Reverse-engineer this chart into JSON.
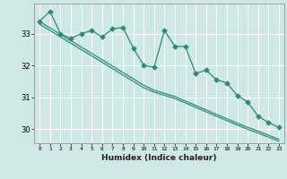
{
  "xlabel": "Humidex (Indice chaleur)",
  "x": [
    0,
    1,
    2,
    3,
    4,
    5,
    6,
    7,
    8,
    9,
    10,
    11,
    12,
    13,
    14,
    15,
    16,
    17,
    18,
    19,
    20,
    21,
    22,
    23
  ],
  "line1": [
    33.4,
    33.7,
    33.0,
    32.85,
    33.0,
    33.1,
    32.9,
    33.15,
    33.2,
    32.55,
    32.0,
    31.95,
    33.1,
    32.6,
    32.6,
    31.75,
    31.85,
    31.55,
    31.45,
    31.05,
    30.85,
    30.4,
    30.2,
    30.05
  ],
  "trend1": [
    33.38,
    33.18,
    32.98,
    32.78,
    32.58,
    32.38,
    32.18,
    31.98,
    31.78,
    31.58,
    31.38,
    31.22,
    31.12,
    31.02,
    30.88,
    30.74,
    30.6,
    30.46,
    30.32,
    30.18,
    30.05,
    29.93,
    29.8,
    29.67
  ],
  "trend2": [
    33.3,
    33.1,
    32.9,
    32.7,
    32.5,
    32.3,
    32.1,
    31.9,
    31.7,
    31.5,
    31.3,
    31.16,
    31.06,
    30.96,
    30.82,
    30.68,
    30.54,
    30.4,
    30.26,
    30.12,
    29.99,
    29.87,
    29.74,
    29.61
  ],
  "line_color": "#2e8b7a",
  "bg_color": "#cde8e5",
  "grid_color": "#ffffff",
  "ylim": [
    29.55,
    33.95
  ],
  "yticks": [
    30,
    31,
    32,
    33
  ],
  "markersize": 2.5,
  "linewidth": 0.9
}
